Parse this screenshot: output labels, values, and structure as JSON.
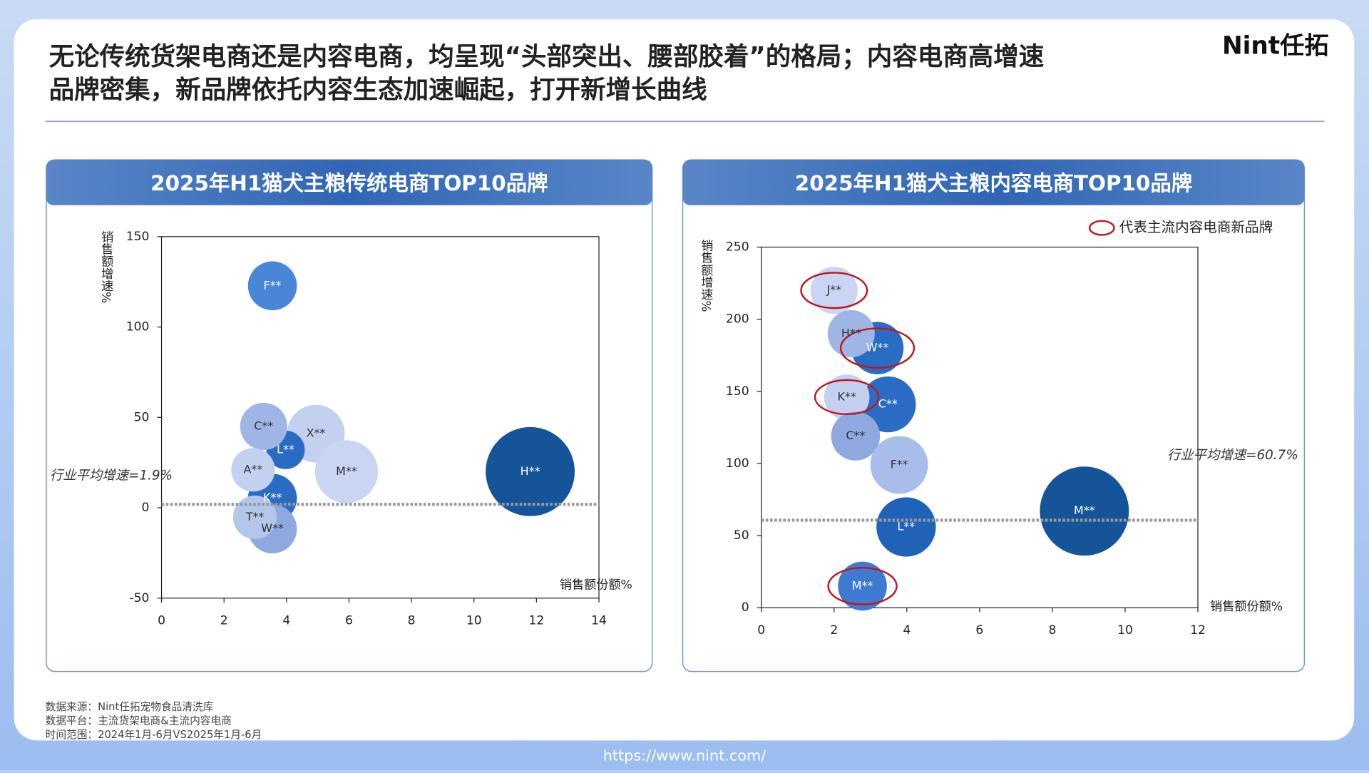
{
  "header": {
    "title_lines": [
      "无论传统货架电商还是内容电商，均呈现“头部突出、腰部胶着”的格局；内容电商高增速",
      "品牌密集，新品牌依托内容生态加速崛起，打开新增长曲线"
    ],
    "logo": "Nint任拓"
  },
  "chart_data": [
    {
      "type": "bubble",
      "title": "2025年H1猫犬主粮传统电商TOP10品牌",
      "xlabel": "销售额份额%",
      "ylabel": "销售额增速%",
      "xlim": [
        0,
        14
      ],
      "xticks": [
        0,
        2,
        4,
        6,
        8,
        10,
        12,
        14
      ],
      "ylim": [
        -50,
        150
      ],
      "yticks": [
        -50,
        0,
        50,
        100,
        150
      ],
      "labels": [
        "F**",
        "X**",
        "L**",
        "C**",
        "M**",
        "H**",
        "K**",
        "W**",
        "A**",
        "T**"
      ],
      "x": [
        3.55,
        4.94,
        3.97,
        3.27,
        5.92,
        11.8,
        3.55,
        3.55,
        2.93,
        2.99
      ],
      "values": [
        122.8,
        41,
        32,
        45,
        20,
        20,
        5.3,
        -11.7,
        21,
        -5.3
      ],
      "sizes": [
        28,
        33,
        22,
        27,
        36,
        51,
        28,
        28,
        25,
        25
      ],
      "colors": [
        "#4a86d8",
        "#c4d0f0",
        "#2a6cc4",
        "#9fb5e6",
        "#c9d5f2",
        "#16549a",
        "#2a6cc4",
        "#8fa9e0",
        "#c4d0f0",
        "#b4c6ea"
      ],
      "reference_line": {
        "value": 1.9,
        "label": "行业平均增速=1.9%"
      }
    },
    {
      "type": "bubble",
      "title": "2025年H1猫犬主粮内容电商TOP10品牌",
      "xlabel": "销售额份额%",
      "ylabel": "销售额增速%",
      "xlim": [
        0,
        12
      ],
      "xticks": [
        0,
        2,
        4,
        6,
        8,
        10,
        12
      ],
      "ylim": [
        0,
        250
      ],
      "yticks": [
        0,
        50,
        100,
        150,
        200,
        250
      ],
      "labels": [
        "W**",
        "C**",
        "J**",
        "H**",
        "K**",
        "C**",
        "F**",
        "M**",
        "L**",
        "M**"
      ],
      "x": [
        3.19,
        3.48,
        2.0,
        2.47,
        2.35,
        2.59,
        3.79,
        8.88,
        3.98,
        2.78
      ],
      "values": [
        180,
        141,
        220,
        190,
        146,
        119,
        99,
        67,
        56,
        15
      ],
      "sizes": [
        30,
        32,
        27,
        27,
        26,
        28,
        33,
        51,
        34,
        28
      ],
      "colors": [
        "#2a6cc4",
        "#2a6cc4",
        "#c9d5f2",
        "#9fb5e6",
        "#c4d0f0",
        "#8fa9e0",
        "#a8bde9",
        "#16549a",
        "#1f62b8",
        "#3e7ad2"
      ],
      "new_brand": [
        true,
        false,
        true,
        false,
        true,
        false,
        false,
        false,
        false,
        true
      ],
      "new_brand_legend": "代表主流内容电商新品牌",
      "reference_line": {
        "value": 60.7,
        "label": "行业平均增速=60.7%"
      }
    }
  ],
  "footer": {
    "notes": [
      "数据来源：Nint任拓宠物食品清洗库",
      "数据平台：主流货架电商&主流内容电商",
      "时间范围：2024年1月-6月VS2025年1月-6月"
    ],
    "url": "https://www.nint.com/"
  }
}
